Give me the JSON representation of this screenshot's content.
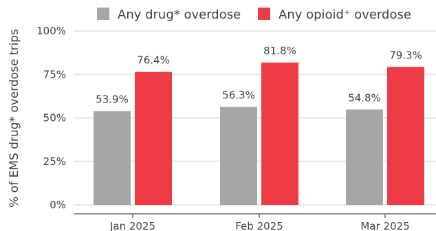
{
  "chart_data": {
    "type": "bar",
    "categories": [
      "Jan 2025",
      "Feb 2025",
      "Mar 2025"
    ],
    "series": [
      {
        "name": "Any drug* overdose",
        "values": [
          53.9,
          56.3,
          54.8
        ],
        "color": "#a6a6a6"
      },
      {
        "name": "Any opioid⁺ overdose",
        "values": [
          76.4,
          81.8,
          79.3
        ],
        "color": "#ee3a43"
      }
    ],
    "value_labels": [
      [
        "53.9%",
        "56.3%",
        "54.8%"
      ],
      [
        "76.4%",
        "81.8%",
        "79.3%"
      ]
    ],
    "y_ticks": [
      0,
      25,
      50,
      75,
      100
    ],
    "y_tick_labels": [
      "0%",
      "25%",
      "50%",
      "75%",
      "100%"
    ],
    "ylim": [
      0,
      100
    ],
    "ylabel": "% of EMS drug* overdose trips",
    "xlabel": "",
    "title": "",
    "grid": true,
    "legend_position": "top"
  }
}
